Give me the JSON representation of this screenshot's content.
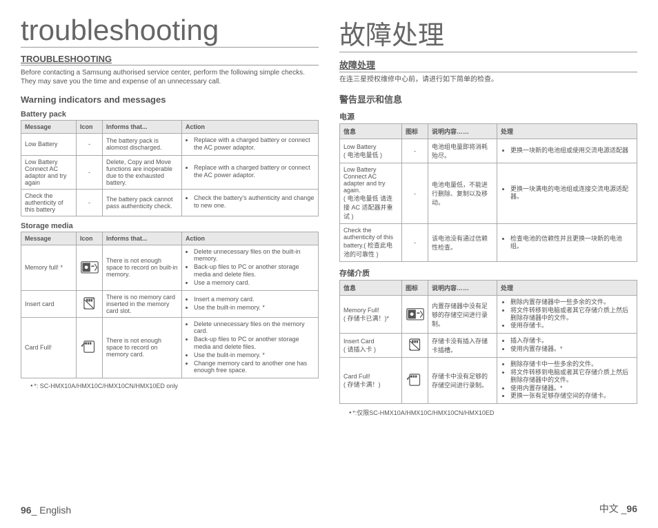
{
  "en": {
    "page_title": "troubleshooting",
    "section_heading": "TROUBLESHOOTING",
    "intro": "Before contacting a Samsung authorised service center, perform the following simple checks. They may save you the time and expense of an unnecessary call.",
    "sub_heading": "Warning indicators and messages",
    "battery_caption": "Battery pack",
    "storage_caption": "Storage media",
    "headers": {
      "message": "Message",
      "icon": "Icon",
      "informs": "Informs that...",
      "action": "Action"
    },
    "battery_rows": [
      {
        "message": "Low Battery",
        "icon": "-",
        "informs": "The battery pack is alomost discharged.",
        "actions": [
          "Replace with a charged battery or connect the AC power adaptor."
        ]
      },
      {
        "message": "Low Battery Connect AC adaptor and try again",
        "icon": "-",
        "informs": "Delete, Copy and Move functions are inoperable due to the exhausted battery.",
        "actions": [
          "Replace with a charged battery or connect the AC power adaptor."
        ]
      },
      {
        "message": "Check the authenticity of this battery",
        "icon": "-",
        "informs": "The battery pack cannot pass authenticity check.",
        "actions": [
          "Check the battery's authenticity and change to new one."
        ]
      }
    ],
    "storage_rows": [
      {
        "message": "Memory full! *",
        "icon_type": "memory",
        "informs": "There is not enough space to record on built-in memory.",
        "actions": [
          "Delete unnecessary files on the built-in memory.",
          "Back-up files to PC or another storage media and delete files.",
          "Use a memory card."
        ]
      },
      {
        "message": "Insert card",
        "icon_type": "insert",
        "informs": "There is no memory card inserted in the memory card slot.",
        "actions": [
          "Insert a memory card.",
          "Use the built-in memory. *"
        ]
      },
      {
        "message": "Card Full!",
        "icon_type": "cardfull",
        "informs": "There is not enough space to record on memory card.",
        "actions": [
          "Delete unnecessary files on the memory card.",
          "Back-up files to PC or another storage media and delete files.",
          "Use the bulit-in memory. *",
          "Change memory card to another one has enough free space."
        ]
      }
    ],
    "footnote": "*: SC-HMX10A/HMX10C/HMX10CN/HMX10ED only",
    "footer_page": "96",
    "footer_lang": "English"
  },
  "cn": {
    "page_title": "故障处理",
    "section_heading": "故障处理",
    "intro": "在连三星授权维修中心前，请进行如下简单的检查。",
    "sub_heading": "警告显示和信息",
    "battery_caption": "电源",
    "storage_caption": "存储介质",
    "headers": {
      "message": "信息",
      "icon": "图标",
      "informs": "说明内容……",
      "action": "处理"
    },
    "battery_rows": [
      {
        "message": "Low Battery\n( 电池电量低 )",
        "icon": "-",
        "informs": "电池组电量即将消耗殆尽。",
        "actions": [
          "更换一块新的电池组或使用交流电源适配器"
        ]
      },
      {
        "message": "Low Battery Connect AC adapter and try again.\n( 电池电量低 请连接 AC 适配器并重试 )",
        "icon": "-",
        "informs": "电池电量低，不能进行删除、复制以及移动。",
        "actions": [
          "更换一块满电的电池组或连接交流电源适配器。"
        ]
      },
      {
        "message": "Check the authenticity of this battery.( 检查此电池的可靠性 )",
        "icon": "-",
        "informs": "该电池没有通过信赖性检查。",
        "actions": [
          "检查电池的信赖性并且更换一块新的电池组。"
        ]
      }
    ],
    "storage_rows": [
      {
        "message": "Memory Full!\n( 存储卡已满！)*",
        "icon_type": "memory",
        "informs": "内置存储器中没有足够的存储空间进行录制。",
        "actions": [
          "删除内置存储器中一些多余的文件。",
          "将文件转移到电脑或者其它存储介质上然后删除存储器中的文件。",
          "使用存储卡。"
        ]
      },
      {
        "message": "Insert Card\n( 请插入卡 )",
        "icon_type": "insert",
        "informs": "存储卡没有插入存储卡插槽。",
        "actions": [
          "插入存储卡。",
          "使用内置存储器。*"
        ]
      },
      {
        "message": "Card Full!\n( 存储卡满！)",
        "icon_type": "cardfull",
        "informs": "存储卡中没有足够的存储空间进行录制。",
        "actions": [
          "删除存储卡中一些多余的文件。",
          "将文件转移到电脑或者其它存储介质上然后删除存储器中的文件。",
          "使用内置存储器。*",
          "更换一张有足够存储空间的存储卡。"
        ]
      }
    ],
    "footnote": "*:仅限SC-HMX10A/HMX10C/HMX10CN/HMX10ED",
    "footer_page": "96",
    "footer_lang": "中文"
  }
}
